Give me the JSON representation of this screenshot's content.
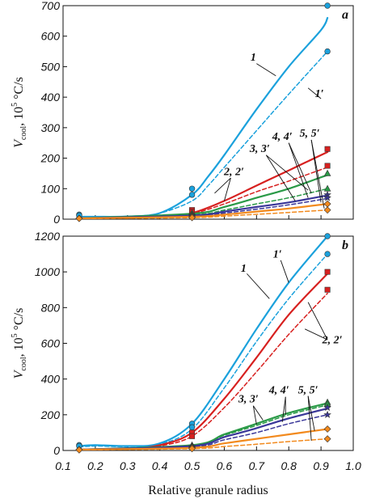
{
  "chart_data": [
    {
      "type": "line",
      "panel_label": "a",
      "ylabel": {
        "main": "V",
        "sub": "cool",
        "rest": ", 10",
        "sup": "5",
        "unit": " °C/s"
      },
      "xlim": [
        0.1,
        1.0
      ],
      "ylim": [
        0,
        700
      ],
      "yticks": [
        0,
        100,
        200,
        300,
        400,
        500,
        600,
        700
      ],
      "series": [
        {
          "label": "1",
          "color": "#1ba1dc",
          "dash": false,
          "marker": "circle",
          "marker_points": [
            [
              0.15,
              15
            ],
            [
              0.5,
              100
            ],
            [
              0.92,
              700
            ]
          ],
          "curve": [
            [
              0.15,
              8
            ],
            [
              0.2,
              8
            ],
            [
              0.3,
              9
            ],
            [
              0.4,
              20
            ],
            [
              0.5,
              80
            ],
            [
              0.55,
              140
            ],
            [
              0.6,
              210
            ],
            [
              0.7,
              360
            ],
            [
              0.8,
              500
            ],
            [
              0.9,
              620
            ],
            [
              0.92,
              660
            ]
          ]
        },
        {
          "label": "1′",
          "color": "#1ba1dc",
          "dash": true,
          "marker": "circle",
          "marker_points": [
            [
              0.15,
              12
            ],
            [
              0.5,
              80
            ],
            [
              0.92,
              550
            ]
          ],
          "curve": [
            [
              0.15,
              6
            ],
            [
              0.2,
              7
            ],
            [
              0.3,
              8
            ],
            [
              0.4,
              20
            ],
            [
              0.5,
              60
            ],
            [
              0.55,
              110
            ],
            [
              0.6,
              170
            ],
            [
              0.7,
              290
            ],
            [
              0.8,
              410
            ],
            [
              0.92,
              550
            ]
          ]
        },
        {
          "label": "2",
          "color": "#d7201f",
          "dash": false,
          "marker": "square",
          "marker_points": [
            [
              0.5,
              30
            ],
            [
              0.92,
              230
            ]
          ],
          "curve": [
            [
              0.15,
              3
            ],
            [
              0.4,
              8
            ],
            [
              0.5,
              20
            ],
            [
              0.6,
              60
            ],
            [
              0.7,
              110
            ],
            [
              0.8,
              160
            ],
            [
              0.92,
              220
            ]
          ]
        },
        {
          "label": "2′",
          "color": "#d7201f",
          "dash": true,
          "marker": "square",
          "marker_points": [
            [
              0.5,
              25
            ],
            [
              0.92,
              175
            ]
          ],
          "curve": [
            [
              0.15,
              3
            ],
            [
              0.4,
              7
            ],
            [
              0.5,
              18
            ],
            [
              0.6,
              50
            ],
            [
              0.7,
              90
            ],
            [
              0.8,
              125
            ],
            [
              0.92,
              170
            ]
          ]
        },
        {
          "label": "3",
          "color": "#2a9a47",
          "dash": false,
          "marker": "triangle",
          "marker_points": [
            [
              0.5,
              20
            ],
            [
              0.92,
              150
            ]
          ],
          "curve": [
            [
              0.15,
              3
            ],
            [
              0.5,
              18
            ],
            [
              0.6,
              40
            ],
            [
              0.7,
              70
            ],
            [
              0.8,
              100
            ],
            [
              0.92,
              145
            ]
          ]
        },
        {
          "label": "3′",
          "color": "#2a9a47",
          "dash": true,
          "marker": "triangle",
          "marker_points": [
            [
              0.5,
              15
            ],
            [
              0.92,
              100
            ]
          ],
          "curve": [
            [
              0.15,
              3
            ],
            [
              0.5,
              14
            ],
            [
              0.6,
              30
            ],
            [
              0.7,
              50
            ],
            [
              0.8,
              70
            ],
            [
              0.92,
              100
            ]
          ]
        },
        {
          "label": "4",
          "color": "#3a3799",
          "dash": false,
          "marker": "star",
          "marker_points": [
            [
              0.5,
              12
            ],
            [
              0.92,
              80
            ]
          ],
          "curve": [
            [
              0.15,
              3
            ],
            [
              0.5,
              12
            ],
            [
              0.6,
              25
            ],
            [
              0.7,
              40
            ],
            [
              0.8,
              55
            ],
            [
              0.92,
              78
            ]
          ]
        },
        {
          "label": "4′",
          "color": "#3a3799",
          "dash": true,
          "marker": "star",
          "marker_points": [
            [
              0.5,
              10
            ],
            [
              0.92,
              70
            ]
          ],
          "curve": [
            [
              0.15,
              3
            ],
            [
              0.5,
              10
            ],
            [
              0.6,
              20
            ],
            [
              0.7,
              33
            ],
            [
              0.8,
              47
            ],
            [
              0.92,
              68
            ]
          ]
        },
        {
          "label": "5",
          "color": "#f28a1e",
          "dash": false,
          "marker": "diamond",
          "marker_points": [
            [
              0.15,
              3
            ],
            [
              0.5,
              8
            ],
            [
              0.92,
              50
            ]
          ],
          "curve": [
            [
              0.15,
              3
            ],
            [
              0.5,
              8
            ],
            [
              0.6,
              15
            ],
            [
              0.7,
              25
            ],
            [
              0.8,
              35
            ],
            [
              0.92,
              50
            ]
          ]
        },
        {
          "label": "5′",
          "color": "#f28a1e",
          "dash": true,
          "marker": "diamond",
          "marker_points": [
            [
              0.15,
              2
            ],
            [
              0.5,
              5
            ],
            [
              0.92,
              30
            ]
          ],
          "curve": [
            [
              0.15,
              2
            ],
            [
              0.5,
              5
            ],
            [
              0.6,
              10
            ],
            [
              0.7,
              16
            ],
            [
              0.8,
              22
            ],
            [
              0.92,
              30
            ]
          ]
        }
      ],
      "annotations": [
        {
          "text": "1",
          "at": [
            0.69,
            520
          ]
        },
        {
          "text": "1′",
          "at": [
            0.895,
            400
          ]
        },
        {
          "text": "2, 2′",
          "at": [
            0.63,
            145
          ]
        },
        {
          "text": "3, 3′",
          "at": [
            0.71,
            220
          ]
        },
        {
          "text": "4, 4′",
          "at": [
            0.78,
            260
          ]
        },
        {
          "text": "5, 5′",
          "at": [
            0.865,
            270
          ]
        }
      ]
    },
    {
      "type": "line",
      "panel_label": "b",
      "ylabel": {
        "main": "V",
        "sub": "cool",
        "rest": ", 10",
        "sup": "5",
        "unit": " °C/s"
      },
      "xlabel": "Relative granule radius",
      "xlim": [
        0.1,
        1.0
      ],
      "xticks": [
        0.1,
        0.2,
        0.3,
        0.4,
        0.5,
        0.6,
        0.7,
        0.8,
        0.9,
        1.0
      ],
      "ylim": [
        0,
        1200
      ],
      "yticks": [
        0,
        200,
        400,
        600,
        800,
        1000,
        1200
      ],
      "series": [
        {
          "label": "1",
          "color": "#1ba1dc",
          "dash": false,
          "marker": "circle",
          "marker_points": [
            [
              0.15,
              30
            ],
            [
              0.5,
              150
            ],
            [
              0.92,
              1200
            ]
          ],
          "curve": [
            [
              0.15,
              25
            ],
            [
              0.2,
              30
            ],
            [
              0.3,
              25
            ],
            [
              0.4,
              40
            ],
            [
              0.5,
              150
            ],
            [
              0.6,
              400
            ],
            [
              0.7,
              680
            ],
            [
              0.8,
              940
            ],
            [
              0.92,
              1200
            ]
          ]
        },
        {
          "label": "1′",
          "color": "#1ba1dc",
          "dash": true,
          "marker": "circle",
          "marker_points": [
            [
              0.15,
              25
            ],
            [
              0.5,
              130
            ],
            [
              0.92,
              1100
            ]
          ],
          "curve": [
            [
              0.15,
              20
            ],
            [
              0.2,
              25
            ],
            [
              0.3,
              22
            ],
            [
              0.4,
              35
            ],
            [
              0.5,
              120
            ],
            [
              0.6,
              350
            ],
            [
              0.7,
              610
            ],
            [
              0.8,
              850
            ],
            [
              0.92,
              1100
            ]
          ]
        },
        {
          "label": "2",
          "color": "#d7201f",
          "dash": false,
          "marker": "square",
          "marker_points": [
            [
              0.5,
              100
            ],
            [
              0.92,
              1000
            ]
          ],
          "curve": [
            [
              0.15,
              5
            ],
            [
              0.3,
              10
            ],
            [
              0.4,
              30
            ],
            [
              0.5,
              100
            ],
            [
              0.6,
              290
            ],
            [
              0.7,
              520
            ],
            [
              0.8,
              760
            ],
            [
              0.92,
              990
            ]
          ]
        },
        {
          "label": "2′",
          "color": "#d7201f",
          "dash": true,
          "marker": "square",
          "marker_points": [
            [
              0.5,
              80
            ],
            [
              0.92,
              900
            ]
          ],
          "curve": [
            [
              0.15,
              5
            ],
            [
              0.3,
              10
            ],
            [
              0.4,
              25
            ],
            [
              0.5,
              80
            ],
            [
              0.6,
              240
            ],
            [
              0.7,
              440
            ],
            [
              0.8,
              650
            ],
            [
              0.92,
              880
            ]
          ]
        },
        {
          "label": "3",
          "color": "#2a9a47",
          "dash": false,
          "marker": "triangle",
          "marker_points": [
            [
              0.5,
              30
            ],
            [
              0.92,
              270
            ]
          ],
          "curve": [
            [
              0.15,
              5
            ],
            [
              0.5,
              30
            ],
            [
              0.6,
              90
            ],
            [
              0.7,
              150
            ],
            [
              0.8,
              210
            ],
            [
              0.92,
              265
            ]
          ]
        },
        {
          "label": "3′",
          "color": "#2a9a47",
          "dash": true,
          "marker": "triangle",
          "marker_points": [
            [
              0.5,
              25
            ],
            [
              0.92,
              260
            ]
          ],
          "curve": [
            [
              0.15,
              5
            ],
            [
              0.5,
              28
            ],
            [
              0.6,
              85
            ],
            [
              0.7,
              140
            ],
            [
              0.8,
              200
            ],
            [
              0.92,
              255
            ]
          ]
        },
        {
          "label": "4",
          "color": "#3a3799",
          "dash": false,
          "marker": "star",
          "marker_points": [
            [
              0.5,
              20
            ],
            [
              0.92,
              240
            ]
          ],
          "curve": [
            [
              0.15,
              5
            ],
            [
              0.5,
              25
            ],
            [
              0.6,
              75
            ],
            [
              0.7,
              125
            ],
            [
              0.8,
              180
            ],
            [
              0.92,
              235
            ]
          ]
        },
        {
          "label": "4′",
          "color": "#3a3799",
          "dash": true,
          "marker": "star",
          "marker_points": [
            [
              0.5,
              18
            ],
            [
              0.92,
              200
            ]
          ],
          "curve": [
            [
              0.15,
              5
            ],
            [
              0.5,
              20
            ],
            [
              0.6,
              60
            ],
            [
              0.7,
              100
            ],
            [
              0.8,
              150
            ],
            [
              0.92,
              200
            ]
          ]
        },
        {
          "label": "5",
          "color": "#f28a1e",
          "dash": false,
          "marker": "diamond",
          "marker_points": [
            [
              0.15,
              5
            ],
            [
              0.5,
              15
            ],
            [
              0.92,
              120
            ]
          ],
          "curve": [
            [
              0.15,
              5
            ],
            [
              0.5,
              15
            ],
            [
              0.6,
              40
            ],
            [
              0.7,
              65
            ],
            [
              0.8,
              90
            ],
            [
              0.92,
              120
            ]
          ]
        },
        {
          "label": "5′",
          "color": "#f28a1e",
          "dash": true,
          "marker": "diamond",
          "marker_points": [
            [
              0.15,
              3
            ],
            [
              0.5,
              10
            ],
            [
              0.92,
              65
            ]
          ],
          "curve": [
            [
              0.15,
              3
            ],
            [
              0.5,
              10
            ],
            [
              0.6,
              22
            ],
            [
              0.7,
              35
            ],
            [
              0.8,
              50
            ],
            [
              0.92,
              65
            ]
          ]
        }
      ],
      "annotations": [
        {
          "text": "1",
          "at": [
            0.66,
            1000
          ]
        },
        {
          "text": "1′",
          "at": [
            0.765,
            1080
          ]
        },
        {
          "text": "2, 2′",
          "at": [
            0.935,
            600
          ]
        },
        {
          "text": "3, 3′",
          "at": [
            0.675,
            270
          ]
        },
        {
          "text": "4, 4′",
          "at": [
            0.77,
            320
          ]
        },
        {
          "text": "5, 5′",
          "at": [
            0.86,
            320
          ]
        }
      ]
    }
  ]
}
